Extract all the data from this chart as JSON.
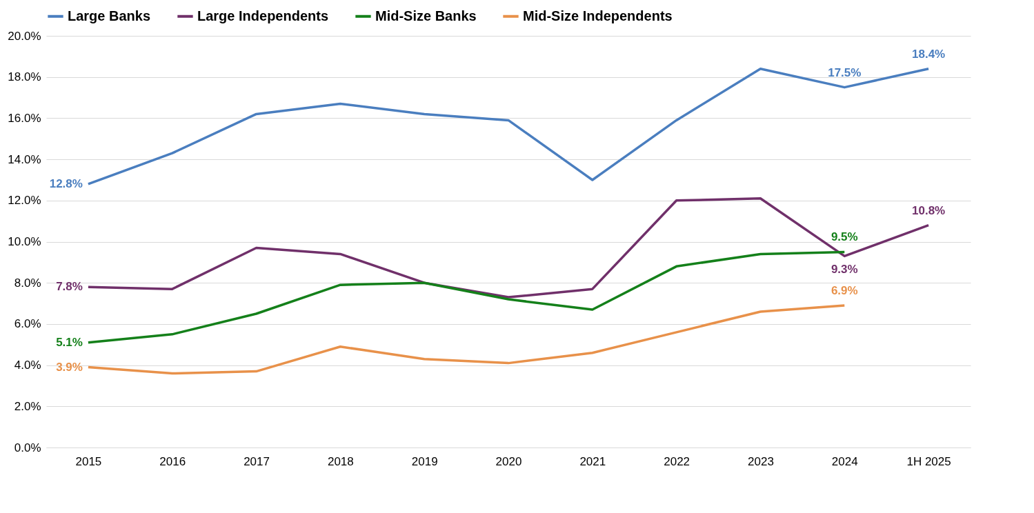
{
  "chart_data": {
    "type": "line",
    "categories": [
      "2015",
      "2016",
      "2017",
      "2018",
      "2019",
      "2020",
      "2021",
      "2022",
      "2023",
      "2024",
      "1H 2025"
    ],
    "series": [
      {
        "name": "Large Banks",
        "color": "#4a7ebf",
        "values": [
          12.8,
          14.3,
          16.2,
          16.7,
          16.2,
          15.9,
          13.0,
          15.9,
          18.4,
          17.5,
          18.4
        ],
        "value_labels": [
          "12.8%",
          null,
          null,
          null,
          null,
          null,
          null,
          null,
          null,
          "17.5%",
          "18.4%"
        ]
      },
      {
        "name": "Large Independents",
        "color": "#70306a",
        "values": [
          7.8,
          7.7,
          9.7,
          9.4,
          8.0,
          7.3,
          7.7,
          12.0,
          12.1,
          9.3,
          10.8
        ],
        "value_labels": [
          "7.8%",
          null,
          null,
          null,
          null,
          null,
          null,
          null,
          null,
          "9.3%",
          "10.8%"
        ]
      },
      {
        "name": "Mid-Size Banks",
        "color": "#14801a",
        "values": [
          5.1,
          5.5,
          6.5,
          7.9,
          8.0,
          7.2,
          6.7,
          8.8,
          9.4,
          9.5,
          null
        ],
        "value_labels": [
          "5.1%",
          null,
          null,
          null,
          null,
          null,
          null,
          null,
          null,
          "9.5%",
          null
        ]
      },
      {
        "name": "Mid-Size Independents",
        "color": "#e8914a",
        "values": [
          3.9,
          3.6,
          3.7,
          4.9,
          4.3,
          4.1,
          4.6,
          5.6,
          6.6,
          6.9,
          null
        ],
        "value_labels": [
          "3.9%",
          null,
          null,
          null,
          null,
          null,
          null,
          null,
          null,
          "6.9%",
          null
        ]
      }
    ],
    "ylim": [
      0,
      20
    ],
    "yticks": [
      {
        "value": 0,
        "label": "0.0%"
      },
      {
        "value": 2,
        "label": "2.0%"
      },
      {
        "value": 4,
        "label": "4.0%"
      },
      {
        "value": 6,
        "label": "6.0%"
      },
      {
        "value": 8,
        "label": "8.0%"
      },
      {
        "value": 10,
        "label": "10.0%"
      },
      {
        "value": 12,
        "label": "12.0%"
      },
      {
        "value": 14,
        "label": "14.0%"
      },
      {
        "value": 16,
        "label": "16.0%"
      },
      {
        "value": 18,
        "label": "18.0%"
      },
      {
        "value": 20,
        "label": "20.0%"
      }
    ],
    "grid": "y",
    "legend": "top",
    "marker": "none",
    "line_style": "solid"
  }
}
